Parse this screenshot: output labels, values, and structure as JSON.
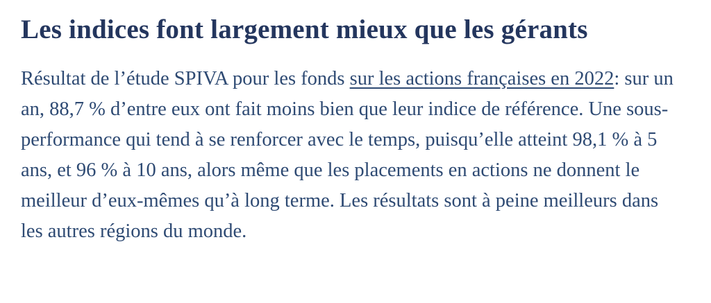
{
  "article": {
    "title": "Les indices font largement mieux que les gérants",
    "paragraph": {
      "before_link": "Résultat de l’étude SPIVA pour les fonds ",
      "link_text": "sur les actions françaises en 2022",
      "after_link": ": sur un an, 88,7 % d’entre eux ont fait moins bien que leur indice de référence. Une sous-performance qui tend à se renforcer avec le temps, puisqu’elle atteint 98,1 % à 5 ans, et 96 % à 10 ans, alors même que les placements en actions ne donnent le meilleur d’eux-mêmes qu’à long terme. Les résultats sont à peine meilleurs dans les autres régions du monde."
    },
    "colors": {
      "heading": "#24365e",
      "body_text": "#2e4a73",
      "link": "#2e4a73",
      "background": "#ffffff"
    }
  }
}
